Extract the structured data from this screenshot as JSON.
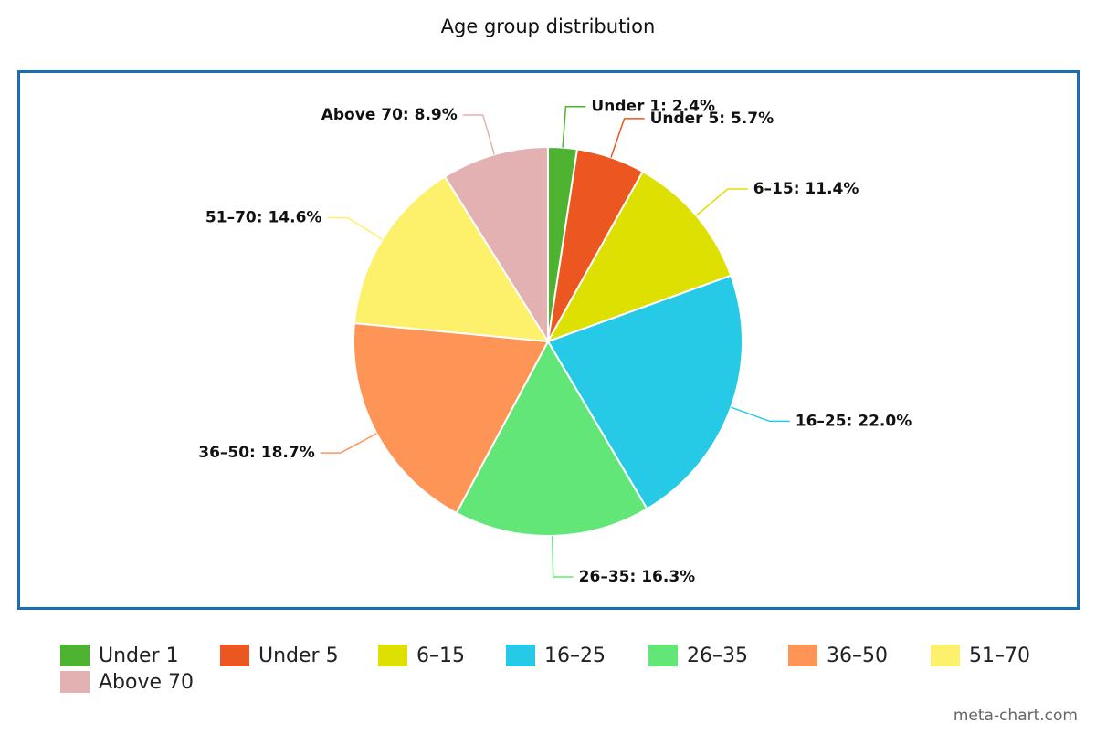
{
  "chart_data": {
    "type": "pie",
    "title": "Age group distribution",
    "categories": [
      "Under 1",
      "Under 5",
      "6–15",
      "16–25",
      "26–35",
      "36–50",
      "51–70",
      "Above 70"
    ],
    "values": [
      2.4,
      5.7,
      11.4,
      22.0,
      16.3,
      18.7,
      14.6,
      8.9
    ],
    "value_labels": [
      "Under 1: 2.4%",
      "Under 5: 5.7%",
      "6–15: 11.4%",
      "16–25: 22.0%",
      "26–35: 16.3%",
      "36–50: 18.7%",
      "51–70: 14.6%",
      "Above 70: 8.9%"
    ],
    "colors": [
      "#4db331",
      "#ec5620",
      "#dde000",
      "#26cae6",
      "#62e677",
      "#fe9557",
      "#fdf06a",
      "#e3b1b1"
    ],
    "legend": "bottom",
    "credit": "meta-chart.com"
  }
}
